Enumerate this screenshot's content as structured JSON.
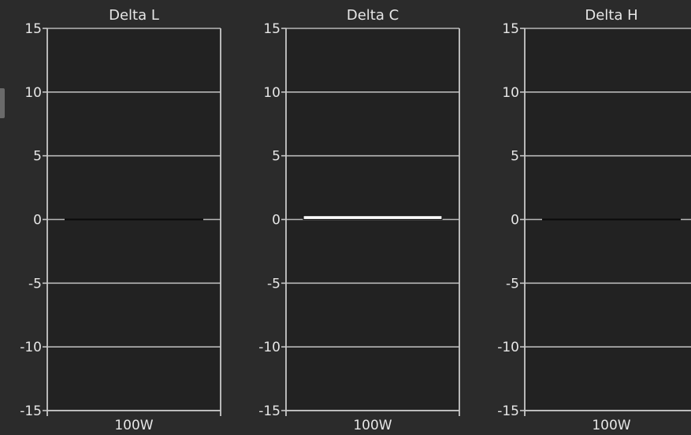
{
  "colors": {
    "background": "#2b2b2b",
    "plot_background": "#222222",
    "gridline": "#b8b8b8",
    "axis": "#c8c8c8",
    "text": "#e6e6e6",
    "bar_fill": "#ffffff",
    "bar_zero": "#0a0a0a"
  },
  "chart_data": [
    {
      "type": "bar",
      "title": "Delta L",
      "categories": [
        "100W"
      ],
      "values": [
        0
      ],
      "ylim": [
        -15,
        15
      ],
      "yticks": [
        15,
        10,
        5,
        0,
        -5,
        -10,
        -15
      ],
      "grid": true
    },
    {
      "type": "bar",
      "title": "Delta C",
      "categories": [
        "100W"
      ],
      "values": [
        0.3
      ],
      "ylim": [
        -15,
        15
      ],
      "yticks": [
        15,
        10,
        5,
        0,
        -5,
        -10,
        -15
      ],
      "grid": true
    },
    {
      "type": "bar",
      "title": "Delta H",
      "categories": [
        "100W"
      ],
      "values": [
        0
      ],
      "ylim": [
        -15,
        15
      ],
      "yticks": [
        15,
        10,
        5,
        0,
        -5,
        -10,
        -15
      ],
      "grid": true
    }
  ]
}
